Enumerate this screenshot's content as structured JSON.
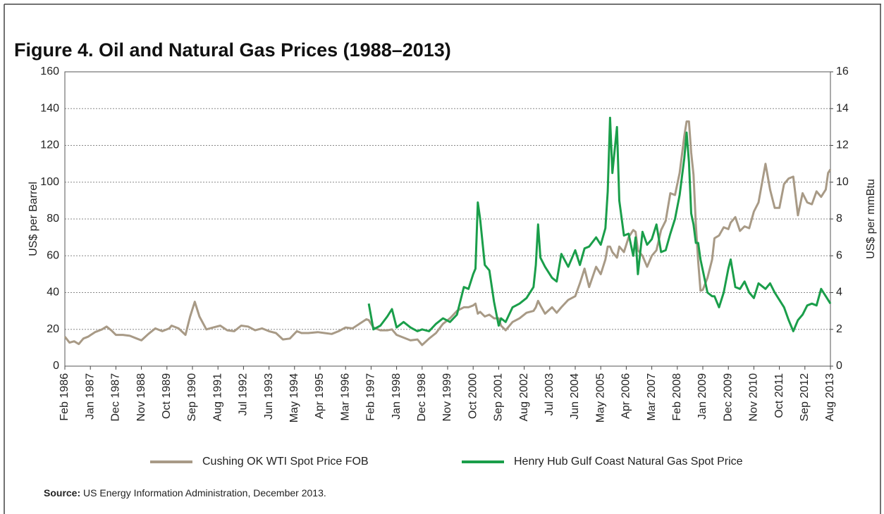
{
  "chart_data": {
    "type": "line",
    "title": "Figure 4. Oil and Natural Gas Prices (1988–2013)",
    "ylabel": "US$ per Barrel",
    "y2label": "US$ per mmBtu",
    "source_label": "Source:",
    "source": "US Energy Information Administration, December 2013.",
    "grid": true,
    "legend": "bottom",
    "xlim": [
      "1986-02",
      "2013-08"
    ],
    "xticks": [
      {
        "value": "1986-02",
        "label": "Feb 1986"
      },
      {
        "value": "1987-01",
        "label": "Jan 1987"
      },
      {
        "value": "1987-12",
        "label": "Dec 1987"
      },
      {
        "value": "1988-11",
        "label": "Nov 1988"
      },
      {
        "value": "1989-10",
        "label": "Oct 1989"
      },
      {
        "value": "1990-09",
        "label": "Sep 1990"
      },
      {
        "value": "1991-08",
        "label": "Aug 1991"
      },
      {
        "value": "1992-07",
        "label": "Jul 1992"
      },
      {
        "value": "1993-06",
        "label": "Jun 1993"
      },
      {
        "value": "1994-05",
        "label": "May 1994"
      },
      {
        "value": "1995-04",
        "label": "Apr 1995"
      },
      {
        "value": "1996-03",
        "label": "Mar 1996"
      },
      {
        "value": "1997-02",
        "label": "Feb 1997"
      },
      {
        "value": "1998-01",
        "label": "Jan 1998"
      },
      {
        "value": "1998-12",
        "label": "Dec 1998"
      },
      {
        "value": "1999-11",
        "label": "Nov 1999"
      },
      {
        "value": "2000-10",
        "label": "Oct 2000"
      },
      {
        "value": "2001-09",
        "label": "Sep 2001"
      },
      {
        "value": "2002-08",
        "label": "Aug 2002"
      },
      {
        "value": "2003-07",
        "label": "Jul 2003"
      },
      {
        "value": "2004-06",
        "label": "Jun 2004"
      },
      {
        "value": "2005-05",
        "label": "May 2005"
      },
      {
        "value": "2006-04",
        "label": "Apr 2006"
      },
      {
        "value": "2007-03",
        "label": "Mar 2007"
      },
      {
        "value": "2008-02",
        "label": "Feb 2008"
      },
      {
        "value": "2009-01",
        "label": "Jan 2009"
      },
      {
        "value": "2009-12",
        "label": "Dec 2009"
      },
      {
        "value": "2010-11",
        "label": "Nov 2010"
      },
      {
        "value": "2011-10",
        "label": "Oct 2011"
      },
      {
        "value": "2012-09",
        "label": "Sep 2012"
      },
      {
        "value": "2013-08",
        "label": "Aug 2013"
      }
    ],
    "ylim": [
      0,
      160
    ],
    "yticks": [
      0,
      20,
      40,
      60,
      80,
      100,
      120,
      140,
      160
    ],
    "y2lim": [
      0,
      16
    ],
    "y2ticks": [
      0,
      2,
      4,
      6,
      8,
      10,
      12,
      14,
      16
    ],
    "x": [
      "1986-02",
      "1986-04",
      "1986-06",
      "1986-08",
      "1986-10",
      "1986-12",
      "1987-03",
      "1987-06",
      "1987-08",
      "1987-10",
      "1987-12",
      "1988-03",
      "1988-06",
      "1988-09",
      "1988-11",
      "1989-02",
      "1989-05",
      "1989-08",
      "1989-11",
      "1989-12",
      "1990-03",
      "1990-06",
      "1990-08",
      "1990-10",
      "1990-12",
      "1991-03",
      "1991-06",
      "1991-09",
      "1991-12",
      "1992-03",
      "1992-06",
      "1992-09",
      "1992-12",
      "1993-03",
      "1993-06",
      "1993-09",
      "1993-12",
      "1994-03",
      "1994-06",
      "1994-08",
      "1994-11",
      "1995-03",
      "1995-06",
      "1995-09",
      "1995-12",
      "1996-03",
      "1996-06",
      "1996-09",
      "1996-12",
      "1997-01",
      "1997-03",
      "1997-06",
      "1997-09",
      "1997-11",
      "1998-01",
      "1998-04",
      "1998-07",
      "1998-10",
      "1998-12",
      "1999-03",
      "1999-06",
      "1999-09",
      "1999-12",
      "2000-03",
      "2000-06",
      "2000-08",
      "2000-10",
      "2000-11",
      "2000-12",
      "2001-01",
      "2001-03",
      "2001-05",
      "2001-07",
      "2001-09",
      "2001-10",
      "2001-12",
      "2002-03",
      "2002-06",
      "2002-09",
      "2002-12",
      "2003-01",
      "2003-02",
      "2003-03",
      "2003-05",
      "2003-08",
      "2003-10",
      "2003-12",
      "2004-03",
      "2004-06",
      "2004-08",
      "2004-10",
      "2004-12",
      "2005-03",
      "2005-05",
      "2005-07",
      "2005-08",
      "2005-09",
      "2005-10",
      "2005-12",
      "2006-01",
      "2006-03",
      "2006-05",
      "2006-07",
      "2006-08",
      "2006-09",
      "2006-11",
      "2007-01",
      "2007-03",
      "2007-05",
      "2007-07",
      "2007-09",
      "2007-11",
      "2008-01",
      "2008-03",
      "2008-05",
      "2008-06",
      "2008-07",
      "2008-08",
      "2008-09",
      "2008-10",
      "2008-11",
      "2008-12",
      "2009-01",
      "2009-03",
      "2009-05",
      "2009-06",
      "2009-08",
      "2009-10",
      "2009-12",
      "2010-01",
      "2010-03",
      "2010-05",
      "2010-07",
      "2010-09",
      "2010-11",
      "2011-01",
      "2011-04",
      "2011-06",
      "2011-08",
      "2011-10",
      "2011-12",
      "2012-02",
      "2012-04",
      "2012-06",
      "2012-08",
      "2012-10",
      "2012-12",
      "2013-02",
      "2013-04",
      "2013-06",
      "2013-07",
      "2013-08"
    ],
    "series": [
      {
        "name": "Cushing OK WTI Spot Price FOB",
        "color": "#a89a86",
        "values": [
          16,
          12.8,
          13.5,
          12,
          15,
          16,
          18.5,
          20,
          21.5,
          19.5,
          17,
          17,
          16.5,
          15,
          14,
          17.5,
          20.5,
          19,
          20.5,
          22,
          20.5,
          17,
          27,
          35,
          27,
          20,
          21,
          22,
          19.5,
          19,
          22,
          21.5,
          19.5,
          20.5,
          19,
          18,
          14.5,
          15,
          19,
          18,
          18,
          18.5,
          18,
          17.5,
          19,
          21,
          20.5,
          23,
          25.5,
          25,
          21,
          19.5,
          19.5,
          20,
          17,
          15.5,
          14,
          14.5,
          11.5,
          15,
          18,
          23,
          26,
          30,
          32,
          32,
          33,
          34,
          28.5,
          29.5,
          27,
          28,
          26,
          26,
          22,
          19.5,
          24,
          26,
          29,
          30,
          32,
          35.5,
          33,
          28.5,
          32,
          29,
          32,
          36,
          38,
          45,
          53,
          43,
          54,
          50,
          58,
          65,
          65,
          62,
          59,
          65,
          62,
          70,
          74,
          73,
          63,
          60,
          54,
          60,
          63,
          74,
          79,
          94,
          93,
          105,
          125,
          133,
          133,
          116,
          104,
          77,
          57,
          41,
          41.5,
          48,
          58,
          69.5,
          71,
          75.5,
          74.5,
          78,
          81,
          73.5,
          76,
          75,
          84,
          89,
          110,
          96,
          86,
          86,
          99,
          102,
          103,
          82,
          94,
          89,
          88,
          95,
          92,
          96,
          105,
          107
        ]
      },
      {
        "name": "Henry Hub Gulf Coast Natural Gas Spot Price",
        "color": "#1a9e4a",
        "axis": "y2",
        "values": [
          null,
          null,
          null,
          null,
          null,
          null,
          null,
          null,
          null,
          null,
          null,
          null,
          null,
          null,
          null,
          null,
          null,
          null,
          null,
          null,
          null,
          null,
          null,
          null,
          null,
          null,
          null,
          null,
          null,
          null,
          null,
          null,
          null,
          null,
          null,
          null,
          null,
          null,
          null,
          null,
          null,
          null,
          null,
          null,
          null,
          null,
          null,
          null,
          null,
          3.4,
          2.0,
          2.2,
          2.7,
          3.1,
          2.1,
          2.4,
          2.1,
          1.9,
          2.0,
          1.9,
          2.3,
          2.6,
          2.4,
          2.8,
          4.3,
          4.2,
          5.0,
          5.3,
          8.9,
          8.0,
          5.5,
          5.2,
          3.5,
          2.2,
          2.6,
          2.4,
          3.2,
          3.4,
          3.7,
          4.3,
          5.5,
          7.7,
          5.9,
          5.4,
          4.8,
          4.6,
          6.1,
          5.4,
          6.3,
          5.5,
          6.4,
          6.5,
          7.0,
          6.6,
          7.5,
          9.5,
          13.5,
          10.5,
          13.0,
          9.0,
          7.1,
          7.2,
          6.0,
          7.0,
          5.0,
          7.3,
          6.6,
          6.9,
          7.7,
          6.2,
          6.3,
          7.2,
          8.0,
          9.3,
          11.3,
          12.7,
          11.1,
          8.3,
          7.7,
          6.7,
          6.7,
          5.8,
          5.2,
          4.0,
          3.8,
          3.8,
          3.2,
          4.0,
          5.3,
          5.8,
          4.3,
          4.2,
          4.6,
          4.0,
          3.7,
          4.5,
          4.2,
          4.5,
          4.0,
          3.6,
          3.2,
          2.5,
          1.9,
          2.5,
          2.8,
          3.3,
          3.4,
          3.3,
          4.2,
          3.8,
          3.6,
          3.4
        ]
      }
    ]
  }
}
